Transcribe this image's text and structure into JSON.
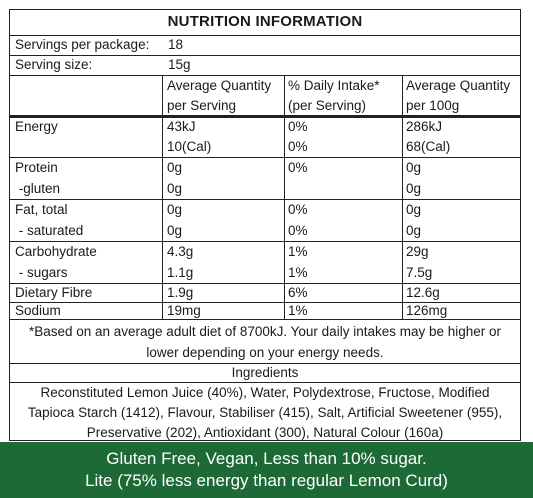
{
  "panel": {
    "title": "NUTRITION INFORMATION",
    "servings_label": "Servings per package:",
    "servings_value": "18",
    "size_label": "Serving size:",
    "size_value": "15g",
    "headers": {
      "col1_line1": "Average Quantity",
      "col1_line2": "per Serving",
      "col2_line1": "% Daily Intake*",
      "col2_line2": "(per Serving)",
      "col3_line1": "Average Quantity",
      "col3_line2": "per 100g"
    },
    "rows": [
      {
        "label": "Energy",
        "serving": "43kJ",
        "daily": "0%",
        "per100": "286kJ"
      },
      {
        "label": "",
        "serving": "10(Cal)",
        "daily": "0%",
        "per100": "68(Cal)"
      },
      {
        "label": "Protein",
        "serving": "0g",
        "daily": "0%",
        "per100": "0g"
      },
      {
        "label": " -gluten",
        "serving": "0g",
        "daily": "",
        "per100": "0g"
      },
      {
        "label": "Fat, total",
        "serving": "0g",
        "daily": "0%",
        "per100": "0g"
      },
      {
        "label": " - saturated",
        "serving": "0g",
        "daily": "0%",
        "per100": "0g"
      },
      {
        "label": "Carbohydrate",
        "serving": "4.3g",
        "daily": "1%",
        "per100": "29g"
      },
      {
        "label": " - sugars",
        "serving": "1.1g",
        "daily": "1%",
        "per100": "7.5g"
      },
      {
        "label": "Dietary Fibre",
        "serving": "1.9g",
        "daily": "6%",
        "per100": "12.6g"
      },
      {
        "label": "Sodium",
        "serving": "19mg",
        "daily": "1%",
        "per100": "126mg"
      }
    ],
    "footnote_line1": "*Based on an average adult diet of 8700kJ. Your daily intakes may be higher or",
    "footnote_line2": "lower depending on your energy needs.",
    "ingredients_title": "Ingredients",
    "ingredients_line1": "Reconstituted Lemon Juice (40%), Water, Polydextrose, Fructose, Modified",
    "ingredients_line2": "Tapioca Starch (1412), Flavour, Stabiliser (415), Salt, Artificial Sweetener (955),",
    "ingredients_line3": "Preservative (202), Antioxidant (300), Natural Colour (160a)"
  },
  "banner": {
    "line1": "Gluten Free, Vegan, Less than 10% sugar.",
    "line2": "Lite (75% less energy than regular Lemon Curd)"
  },
  "colors": {
    "banner_bg": "#1d6a36",
    "text": "#1a1a1a"
  }
}
